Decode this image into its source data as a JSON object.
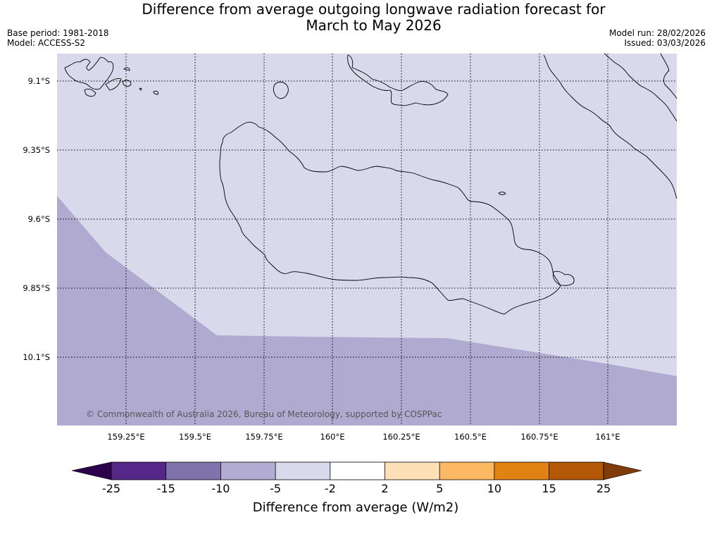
{
  "title": {
    "line1": "Difference from average outgoing longwave radiation forecast for",
    "line2": "March to May 2026"
  },
  "meta": {
    "base_period": "Base period: 1981-2018",
    "model": "Model: ACCESS-S2",
    "model_run": "Model run: 28/02/2026",
    "issued": "Issued: 03/03/2026"
  },
  "map": {
    "extent": {
      "lon_min": 159.0,
      "lon_max": 161.25,
      "lat_min": -10.35,
      "lat_max": -9.0
    },
    "lat_ticks": [
      {
        "value": -9.1,
        "label": "9.1°S"
      },
      {
        "value": -9.35,
        "label": "9.35°S"
      },
      {
        "value": -9.6,
        "label": "9.6°S"
      },
      {
        "value": -9.85,
        "label": "9.85°S"
      },
      {
        "value": -10.1,
        "label": "10.1°S"
      }
    ],
    "lon_ticks": [
      {
        "value": 159.25,
        "label": "159.25°E"
      },
      {
        "value": 159.5,
        "label": "159.5°E"
      },
      {
        "value": 159.75,
        "label": "159.75°E"
      },
      {
        "value": 160.0,
        "label": "160°E"
      },
      {
        "value": 160.25,
        "label": "160.25°E"
      },
      {
        "value": 160.5,
        "label": "160.5°E"
      },
      {
        "value": 160.75,
        "label": "160.75°E"
      },
      {
        "value": 161.0,
        "label": "161°E"
      }
    ],
    "background_band": "-5 to -2",
    "region_band": "-10 to -5",
    "credit": "© Commonwealth of Australia 2026, Bureau of Meteorology, supported by COSPPac"
  },
  "colorbar": {
    "label": "Difference from average (W/m2)",
    "ticks": [
      "-25",
      "-15",
      "-10",
      "-5",
      "-2",
      "2",
      "5",
      "10",
      "15",
      "25"
    ],
    "low_extend_color": "#2d004b",
    "high_extend_color": "#7f3b08",
    "colors": [
      "#542788",
      "#8073ac",
      "#b2abd2",
      "#d8daeb",
      "#ffffff",
      "#fee0b6",
      "#fdb863",
      "#e08214",
      "#b35806"
    ]
  }
}
